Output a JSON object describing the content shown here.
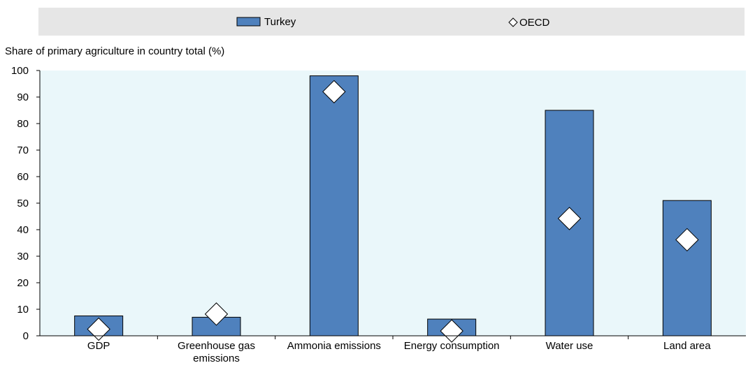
{
  "chart_data": {
    "type": "bar",
    "ylabel": "Share of primary agriculture in country total (%)",
    "ylim": [
      0,
      100
    ],
    "yticks": [
      "0",
      "10",
      "20",
      "30",
      "40",
      "50",
      "60",
      "70",
      "80",
      "90",
      "100"
    ],
    "categories": [
      [
        "GDP"
      ],
      [
        "Greenhouse gas",
        "emissions"
      ],
      [
        "Ammonia emissions"
      ],
      [
        "Energy consumption"
      ],
      [
        "Water use"
      ],
      [
        "Land area"
      ]
    ],
    "series": [
      {
        "name": "Turkey",
        "kind": "bar",
        "color": "#4f81bd",
        "values": [
          7.5,
          7,
          98,
          6.3,
          85,
          51
        ]
      },
      {
        "name": "OECD",
        "kind": "marker",
        "marker": "diamond",
        "color": "#ffffff",
        "values": [
          2.5,
          8.2,
          92,
          1.8,
          44.2,
          36.2
        ]
      }
    ],
    "legend": {
      "position": "top",
      "items": [
        "Turkey",
        "OECD"
      ]
    },
    "grid": false,
    "plot_background": "#eaf7fa"
  }
}
